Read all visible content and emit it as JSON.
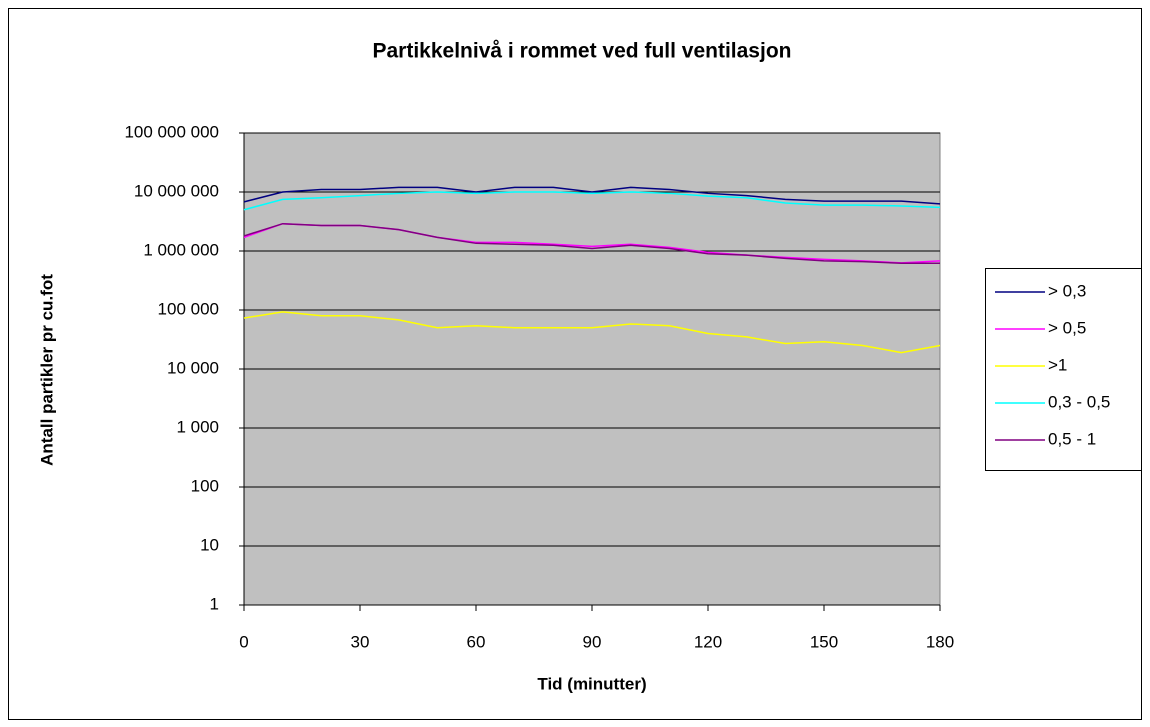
{
  "chart_data": {
    "type": "line",
    "title": "Partikkelnivå i rommet ved full ventilasjon",
    "x_label": "Tid (minutter)",
    "y_label": "Antall partikler pr cu.fot",
    "x": [
      0,
      10,
      20,
      30,
      40,
      50,
      60,
      70,
      80,
      90,
      100,
      110,
      120,
      130,
      140,
      150,
      160,
      170,
      180
    ],
    "xlim": [
      0,
      180
    ],
    "xticks": [
      0,
      30,
      60,
      90,
      120,
      150,
      180
    ],
    "ylim": [
      1,
      100000000
    ],
    "log_y": true,
    "grid": true,
    "legend": "right",
    "yticks": [
      1,
      10,
      100,
      {
        "value": 1000,
        "label": "1 000"
      },
      {
        "value": 10000,
        "label": "10 000"
      },
      {
        "value": 100000,
        "label": "100 000"
      },
      {
        "value": 1000000,
        "label": "1 000 000"
      },
      {
        "value": 10000000,
        "label": "10 000 000"
      },
      {
        "value": 100000000,
        "label": "100 000 000"
      }
    ],
    "series": [
      {
        "name": "> 0,3",
        "color": "#000080",
        "values": [
          6800000,
          10000000,
          11000000,
          11000000,
          12000000,
          12000000,
          10000000,
          12000000,
          12000000,
          10000000,
          12000000,
          11000000,
          9500000,
          8700000,
          7500000,
          7000000,
          7000000,
          7000000,
          6300000
        ]
      },
      {
        "name": "> 0,5",
        "color": "#ff00ff",
        "values": [
          1700000,
          2900000,
          2700000,
          2700000,
          2300000,
          1700000,
          1400000,
          1400000,
          1300000,
          1200000,
          1300000,
          1150000,
          950000,
          850000,
          780000,
          720000,
          680000,
          630000,
          680000
        ]
      },
      {
        "name": ">1",
        "color": "#ffff00",
        "values": [
          73000,
          93000,
          80000,
          80000,
          68000,
          50000,
          54000,
          50000,
          50000,
          50000,
          58000,
          54000,
          40000,
          35000,
          27000,
          29000,
          25000,
          19000,
          25000
        ]
      },
      {
        "name": "0,3 - 0,5",
        "color": "#00ffff",
        "values": [
          5000000,
          7500000,
          8000000,
          8700000,
          9500000,
          10000000,
          9500000,
          10000000,
          10000000,
          9500000,
          10000000,
          9500000,
          8500000,
          8000000,
          6500000,
          6000000,
          6000000,
          5800000,
          5500000
        ]
      },
      {
        "name": "0,5 - 1",
        "color": "#800080",
        "values": [
          1800000,
          2900000,
          2700000,
          2700000,
          2300000,
          1700000,
          1350000,
          1300000,
          1250000,
          1100000,
          1250000,
          1100000,
          900000,
          850000,
          750000,
          680000,
          660000,
          620000,
          620000
        ]
      }
    ]
  }
}
